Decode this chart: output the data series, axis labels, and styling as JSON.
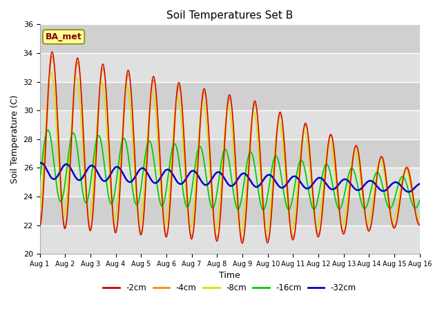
{
  "title": "Soil Temperatures Set B",
  "xlabel": "Time",
  "ylabel": "Soil Temperature (C)",
  "ylim": [
    20,
    36
  ],
  "xlim": [
    0,
    15
  ],
  "xtick_labels": [
    "Aug 1",
    "Aug 2",
    "Aug 3",
    "Aug 4",
    "Aug 5",
    "Aug 6",
    "Aug 7",
    "Aug 8",
    "Aug 9",
    "Aug 10",
    "Aug 11",
    "Aug 12",
    "Aug 13",
    "Aug 14",
    "Aug 15",
    "Aug 16"
  ],
  "legend_labels": [
    "-2cm",
    "-4cm",
    "-8cm",
    "-16cm",
    "-32cm"
  ],
  "colors": [
    "#cc0000",
    "#ff8800",
    "#dddd00",
    "#00cc00",
    "#0000cc"
  ],
  "band_colors": [
    "#e0e0e0",
    "#d0d0d0"
  ],
  "bg_color": "#d8d8d8",
  "annotation_text": "BA_met",
  "annotation_color": "#8b0000",
  "annotation_bg": "#ffff99"
}
